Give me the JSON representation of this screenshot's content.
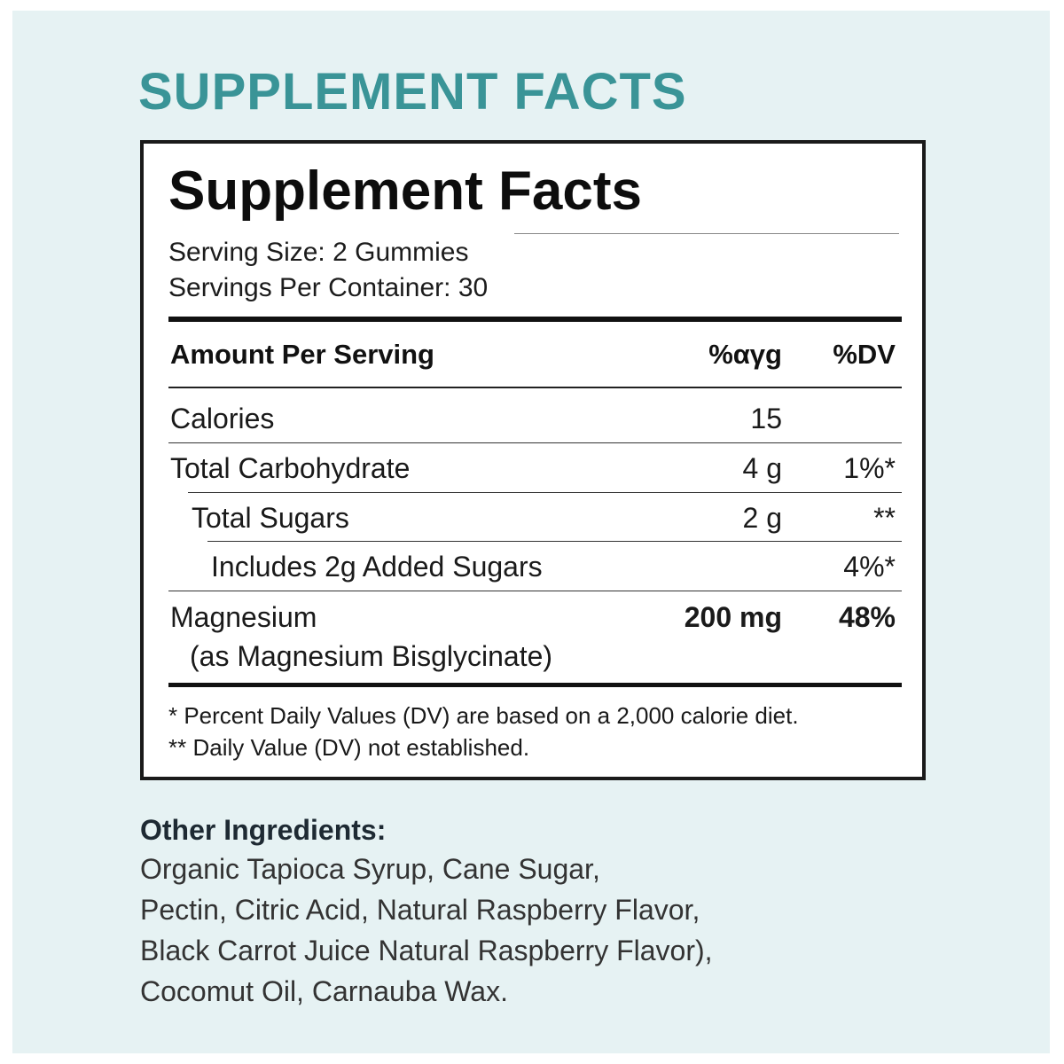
{
  "heading": "SUPPLEMENT FACTS",
  "label": {
    "title": "Supplement Facts",
    "serving_size": "Serving Size: 2 Gummies",
    "servings_per_container": "Servings Per Container: 30",
    "columns": {
      "amount_per_serving": "Amount Per Serving",
      "amount": "%αγg",
      "dv": "%DV"
    },
    "rows": [
      {
        "name": "Calories",
        "amount": "15",
        "dv": ""
      },
      {
        "name": "Total Carbohydrate",
        "amount": "4 g",
        "dv": "1%*"
      },
      {
        "name": "Total Sugars",
        "amount": "2 g",
        "dv": "**"
      },
      {
        "name": "Includes 2g Added Sugars",
        "amount": "",
        "dv": "4%*"
      },
      {
        "name": "Magnesium",
        "sub": "(as Magnesium Bisglycinate)",
        "amount": "200 mg",
        "dv": "48%"
      }
    ],
    "footnotes": [
      "* Percent Daily Values (DV) are based on a 2,000 calorie diet.",
      "** Daily Value (DV) not established."
    ]
  },
  "other_ingredients": {
    "title": "Other Ingredients:",
    "lines": [
      "Organic Tapioca Syrup, Cane Sugar,",
      "Pectin, Citric Acid, Natural Raspberry Flavor,",
      "Black Carrot Juice Natural Raspberry Flavor),",
      "Cocomut Oil, Carnauba Wax."
    ]
  },
  "colors": {
    "background": "#e6f2f3",
    "heading": "#3a9497",
    "panel_border": "#1a1a1a"
  }
}
